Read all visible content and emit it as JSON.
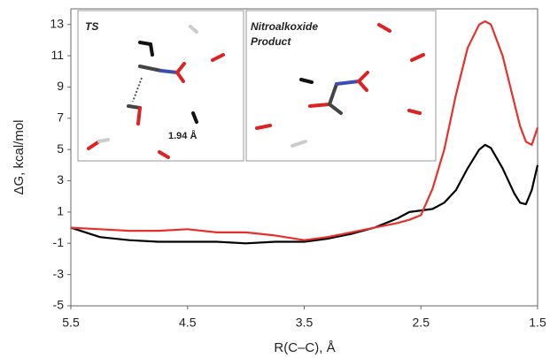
{
  "chart_data": {
    "type": "line",
    "x_label": "R(C–C), Å",
    "y_label": "ΔG, kcal/mol",
    "annotations": [
      "TS",
      "1.94 Å",
      "Nitroalkoxide",
      "Product"
    ],
    "x": [
      5.5,
      5.25,
      5.0,
      4.75,
      4.5,
      4.25,
      4.0,
      3.75,
      3.5,
      3.3,
      3.1,
      2.9,
      2.7,
      2.6,
      2.5,
      2.4,
      2.3,
      2.2,
      2.1,
      2.0,
      1.95,
      1.9,
      1.8,
      1.7,
      1.65,
      1.6,
      1.55,
      1.5
    ],
    "series": [
      {
        "color": "#000000",
        "values": [
          0.0,
          -0.6,
          -0.8,
          -0.9,
          -0.9,
          -0.9,
          -1.0,
          -0.9,
          -0.9,
          -0.7,
          -0.4,
          0.0,
          0.6,
          1.0,
          1.1,
          1.2,
          1.6,
          2.4,
          3.8,
          5.0,
          5.3,
          5.1,
          3.8,
          2.2,
          1.6,
          1.5,
          2.4,
          4.0
        ]
      },
      {
        "color": "#e8302a",
        "values": [
          0.0,
          -0.1,
          -0.2,
          -0.2,
          -0.1,
          -0.3,
          -0.3,
          -0.5,
          -0.8,
          -0.6,
          -0.3,
          0.0,
          0.3,
          0.5,
          0.8,
          2.5,
          5.0,
          8.5,
          11.5,
          13.0,
          13.2,
          13.0,
          11.0,
          8.0,
          6.5,
          5.5,
          5.3,
          6.4
        ]
      }
    ],
    "xlim": [
      5.5,
      1.5
    ],
    "xticks": [
      5.5,
      4.5,
      3.5,
      2.5,
      1.5
    ],
    "ylim": [
      -5,
      14
    ],
    "yticks": [
      -5,
      -3,
      -1,
      1,
      3,
      5,
      7,
      9,
      11,
      13
    ],
    "grid": false
  }
}
